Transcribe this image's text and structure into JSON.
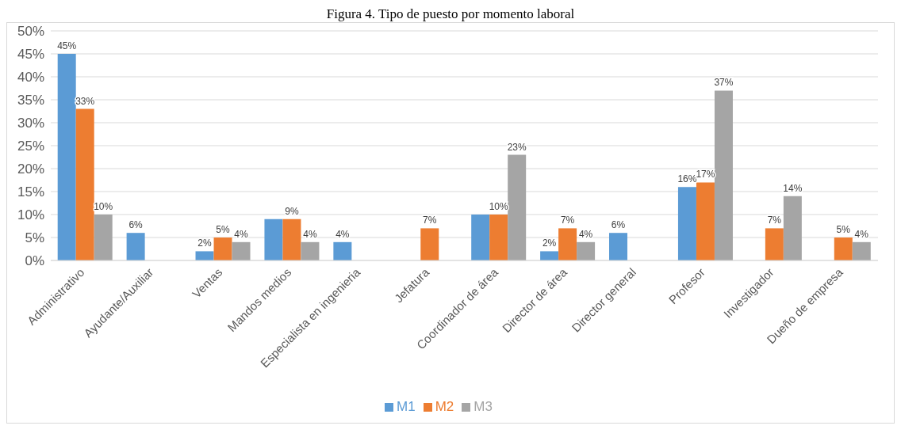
{
  "chart_data": {
    "type": "bar",
    "title": "Figura 4. Tipo de puesto por momento laboral",
    "categories": [
      "Administrativo",
      "Ayudante/Auxiliar",
      "Ventas",
      "Mandos medios",
      "Especialista en ingenieria",
      "Jefatura",
      "Coordinador de área",
      "Director de área",
      "Director general",
      "Profesor",
      "Investigador",
      "Dueño de empresa"
    ],
    "series": [
      {
        "name": "M1",
        "color": "#5b9bd5",
        "values": [
          45,
          6,
          2,
          9,
          4,
          null,
          10,
          2,
          6,
          16,
          null,
          null
        ],
        "value_labels": [
          "45%",
          "6%",
          "2%",
          null,
          "4%",
          null,
          null,
          "2%",
          "6%",
          "16%",
          null,
          null
        ]
      },
      {
        "name": "M2",
        "color": "#ed7d31",
        "values": [
          33,
          null,
          5,
          9,
          null,
          7,
          10,
          7,
          null,
          17,
          7,
          5
        ],
        "value_labels": [
          "33%",
          null,
          "5%",
          "9%",
          null,
          "7%",
          "10%",
          "7%",
          null,
          "17%",
          "7%",
          "5%"
        ]
      },
      {
        "name": "M3",
        "color": "#a5a5a5",
        "values": [
          10,
          null,
          4,
          4,
          null,
          null,
          23,
          4,
          null,
          37,
          14,
          4
        ],
        "value_labels": [
          "10%",
          null,
          "4%",
          "4%",
          null,
          null,
          "23%",
          "4%",
          null,
          "37%",
          "14%",
          "4%"
        ]
      }
    ],
    "ylim": [
      0,
      50
    ],
    "yticks": [
      {
        "value": 0,
        "label": "0%"
      },
      {
        "value": 5,
        "label": "5%"
      },
      {
        "value": 10,
        "label": "10%"
      },
      {
        "value": 15,
        "label": "15%"
      },
      {
        "value": 20,
        "label": "20%"
      },
      {
        "value": 25,
        "label": "25%"
      },
      {
        "value": 30,
        "label": "30%"
      },
      {
        "value": 35,
        "label": "35%"
      },
      {
        "value": 40,
        "label": "40%"
      },
      {
        "value": 45,
        "label": "45%"
      },
      {
        "value": 50,
        "label": "50%"
      }
    ],
    "grid": "y",
    "legend": "bottom"
  }
}
